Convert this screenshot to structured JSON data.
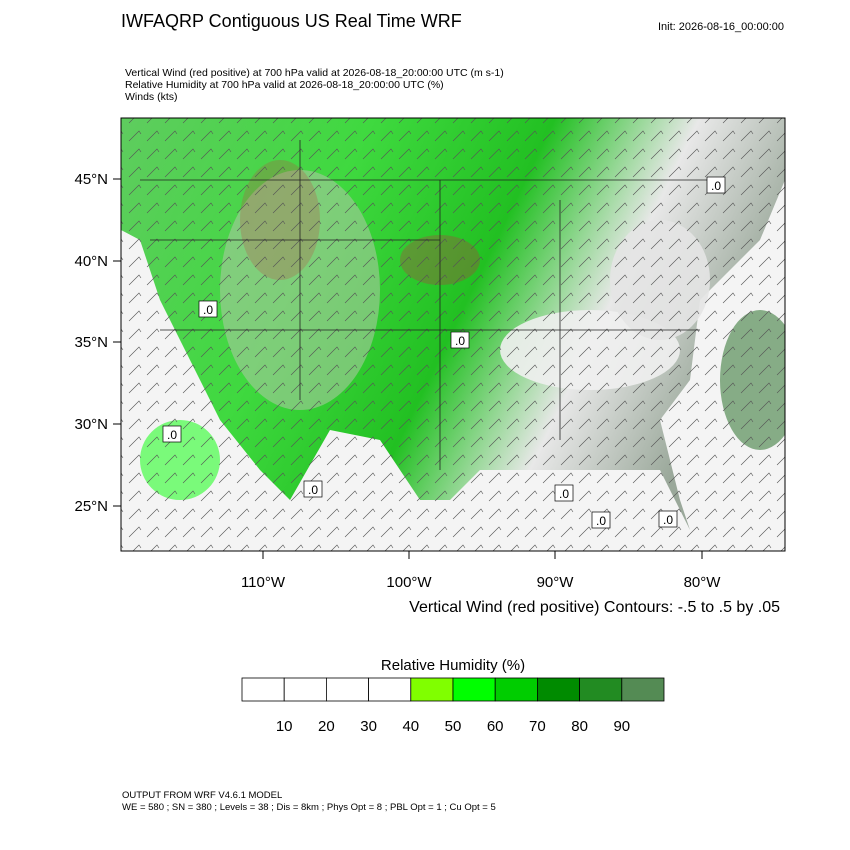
{
  "header": {
    "title": "IWFAQRP Contiguous US Real Time WRF",
    "init": "Init: 2026-08-16_00:00:00",
    "lines": [
      "Vertical Wind (red positive) at 700 hPa valid at 2026-08-18_20:00:00 UTC   (m s-1)",
      "Relative Humidity at 700 hPa valid at 2026-08-18_20:00:00 UTC   (%)",
      "Winds   (kts)"
    ]
  },
  "map": {
    "lat_labels": [
      "45°N",
      "40°N",
      "35°N",
      "30°N",
      "25°N"
    ],
    "lon_labels": [
      "110°W",
      "100°W",
      "90°W",
      "80°W"
    ],
    "contour_labels": [
      ".0",
      ".0",
      ".0",
      ".0",
      ".0",
      ".0",
      ".0",
      ".0"
    ],
    "contour_note": "Vertical Wind (red positive) Contours: -.5 to .5 by .05"
  },
  "colorbar": {
    "title": "Relative Humidity  (%)",
    "levels": [
      10,
      20,
      30,
      40,
      50,
      60,
      70,
      80,
      90
    ],
    "colors": [
      "#ffffff",
      "#ffffff",
      "#ffffff",
      "#ffffff",
      "#80ff00",
      "#00ff00",
      "#00cd00",
      "#008b00",
      "#228b22",
      "#548b54"
    ]
  },
  "footer": {
    "lines": [
      "OUTPUT FROM WRF V4.6.1 MODEL",
      "WE = 580 ; SN = 380 ; Levels = 38 ; Dis = 8km ; Phys Opt = 8 ; PBL Opt = 1 ; Cu Opt = 5"
    ]
  }
}
